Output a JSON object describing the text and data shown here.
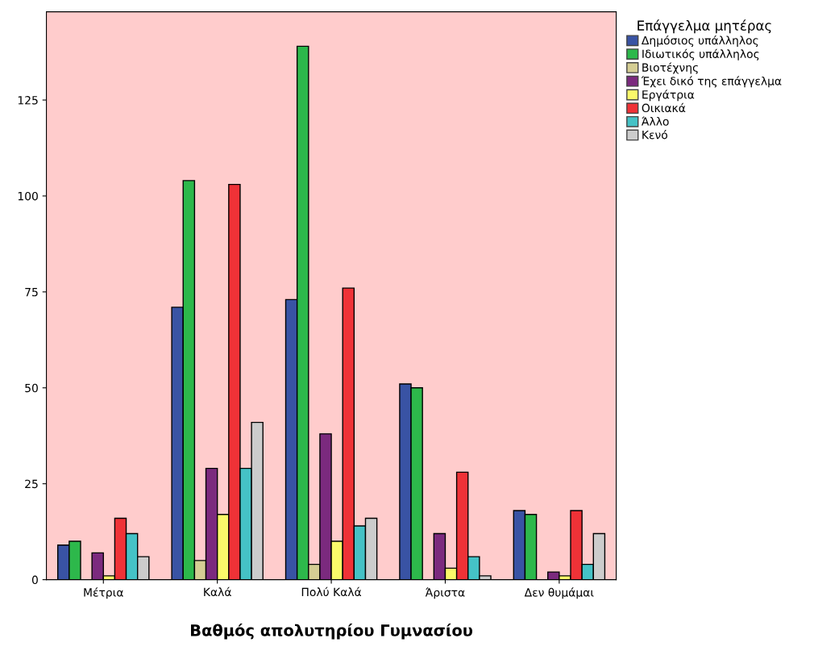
{
  "chart_data": {
    "type": "bar",
    "xlabel": "Βαθμός απολυτηρίου Γυμνασίου",
    "legend_title": "Επάγγελμα μητέρας",
    "categories": [
      "Μέτρια",
      "Καλά",
      "Πολύ Καλά",
      "Άριστα",
      "Δεν θυμάμαι"
    ],
    "series": [
      {
        "name": "Δημόσιος υπάλληλος",
        "color": "#3953a4",
        "values": [
          9,
          71,
          73,
          51,
          18
        ]
      },
      {
        "name": "Ιδιωτικός υπάλληλος",
        "color": "#2db84b",
        "values": [
          10,
          104,
          139,
          50,
          17
        ]
      },
      {
        "name": "Βιοτέχνης",
        "color": "#d5ce94",
        "values": [
          null,
          5,
          4,
          null,
          null
        ]
      },
      {
        "name": "Έχει δικό της επάγγελμα",
        "color": "#7b2a7e",
        "values": [
          7,
          29,
          38,
          12,
          2
        ]
      },
      {
        "name": "Εργάτρια",
        "color": "#fbf96a",
        "values": [
          1,
          17,
          10,
          3,
          1
        ]
      },
      {
        "name": "Οικιακά",
        "color": "#ef3237",
        "values": [
          16,
          103,
          76,
          28,
          18
        ]
      },
      {
        "name": "Άλλο",
        "color": "#45c2c6",
        "values": [
          12,
          29,
          14,
          6,
          4
        ]
      },
      {
        "name": "Κενό",
        "color": "#cccccc",
        "values": [
          6,
          41,
          16,
          1,
          12
        ]
      }
    ],
    "ylim": [
      0,
      148
    ],
    "yticks": [
      0,
      25,
      50,
      75,
      100,
      125
    ],
    "grid": false,
    "legend": "top right"
  }
}
